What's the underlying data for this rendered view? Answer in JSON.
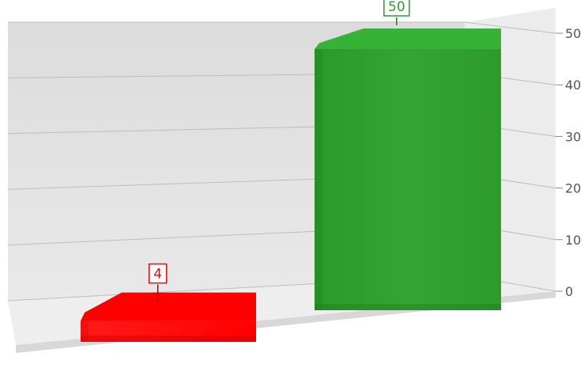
{
  "chart_data": {
    "type": "bar",
    "categories": [
      "",
      ""
    ],
    "values": [
      4,
      50
    ],
    "data_labels": [
      "4",
      "50"
    ],
    "colors": [
      "#ff0000",
      "#2e9e2e"
    ],
    "title": "",
    "xlabel": "",
    "ylabel": "",
    "ylim": [
      0,
      50
    ],
    "yticks": [
      "0",
      "10",
      "20",
      "30",
      "40",
      "50"
    ],
    "y_axis_side": "right",
    "grid": true,
    "legend": "none",
    "style": "3d"
  }
}
